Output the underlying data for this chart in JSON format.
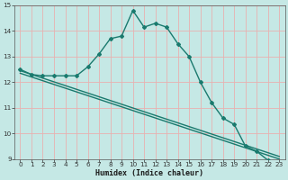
{
  "xlabel": "Humidex (Indice chaleur)",
  "background_color": "#c5e8e5",
  "grid_color": "#e8b0b0",
  "line_color": "#1a7a6e",
  "xlim": [
    -0.5,
    23.5
  ],
  "ylim": [
    9,
    15
  ],
  "yticks": [
    9,
    10,
    11,
    12,
    13,
    14,
    15
  ],
  "xticks": [
    0,
    1,
    2,
    3,
    4,
    5,
    6,
    7,
    8,
    9,
    10,
    11,
    12,
    13,
    14,
    15,
    16,
    17,
    18,
    19,
    20,
    21,
    22,
    23
  ],
  "curve1_x": [
    0,
    1,
    2,
    3,
    4,
    5,
    6,
    7,
    8,
    9,
    10,
    11,
    12,
    13,
    14,
    15,
    16,
    17,
    18,
    19,
    20,
    21,
    22,
    23
  ],
  "curve1_y": [
    12.5,
    12.3,
    12.25,
    12.25,
    12.25,
    12.25,
    12.6,
    13.1,
    13.7,
    13.8,
    14.8,
    14.15,
    14.3,
    14.15,
    13.5,
    13.0,
    12.0,
    11.2,
    10.6,
    10.35,
    9.5,
    9.3,
    8.95,
    8.9
  ],
  "curve2_x": [
    0,
    23
  ],
  "curve2_y": [
    12.45,
    9.1
  ],
  "curve3_x": [
    0,
    23
  ],
  "curve3_y": [
    12.35,
    9.0
  ]
}
